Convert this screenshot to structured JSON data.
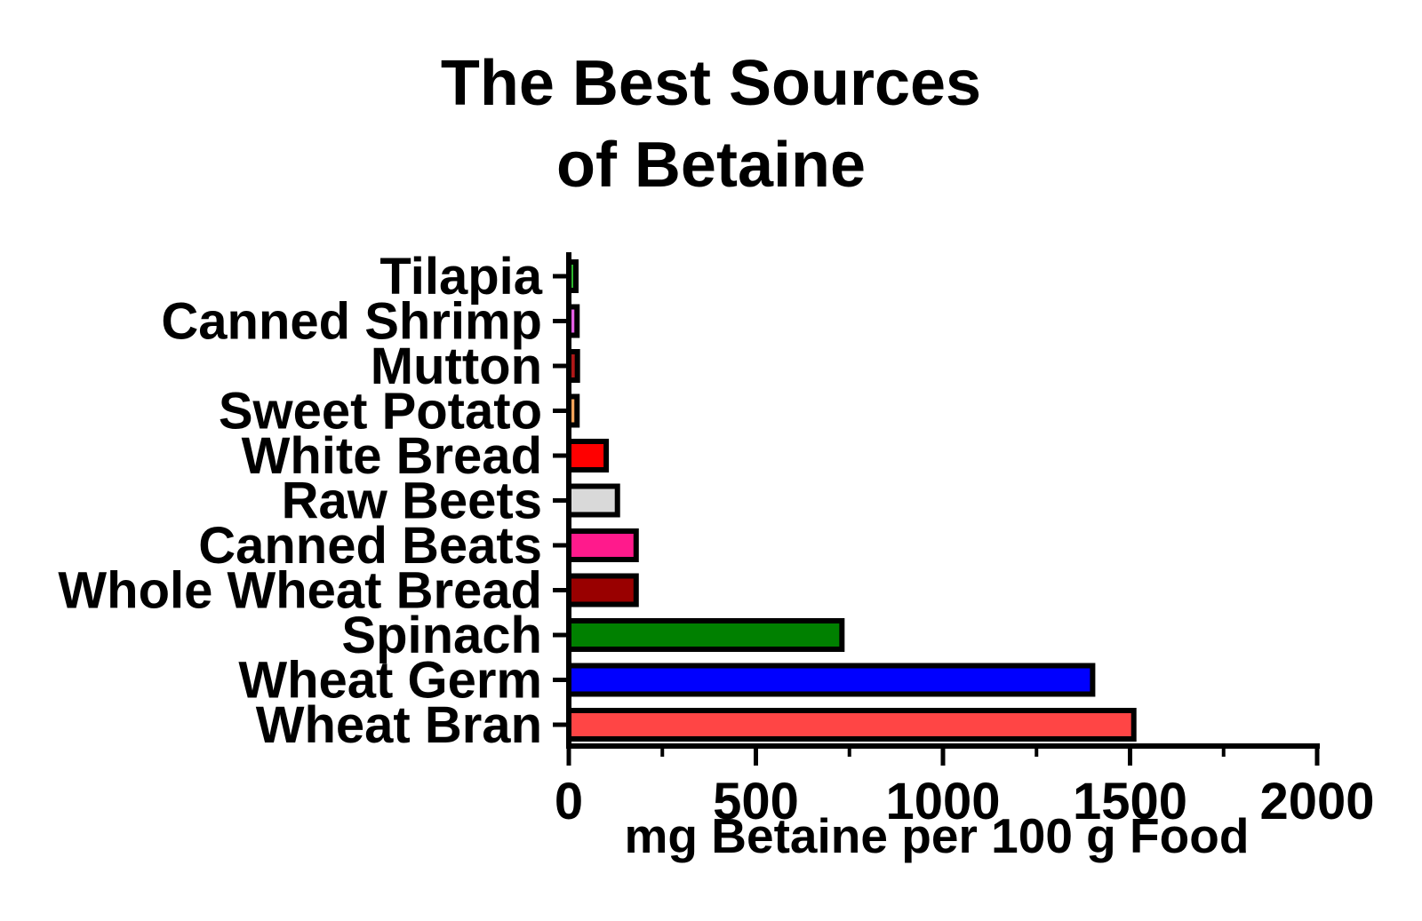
{
  "chart_data": {
    "type": "bar",
    "orientation": "horizontal",
    "title_lines": [
      "The Best Sources",
      "of Betaine"
    ],
    "xlabel": "mg Betaine per 100 g Food",
    "ylabel": "",
    "xlim": [
      0,
      2000
    ],
    "xticks": [
      0,
      500,
      1000,
      1500,
      2000
    ],
    "xtick_labels": [
      "0",
      "500",
      "1000",
      "1500",
      "2000"
    ],
    "grid": false,
    "legend": "none",
    "categories": [
      "Tilapia",
      "Canned Shrimp",
      "Mutton",
      "Sweet Potato",
      "White Bread",
      "Raw Beets",
      "Canned Beats",
      "Whole Wheat Bread",
      "Spinach",
      "Wheat Germ",
      "Wheat Bran"
    ],
    "values": [
      19,
      22,
      23,
      22,
      100,
      130,
      180,
      180,
      730,
      1400,
      1510
    ],
    "colors": [
      "#2db52d",
      "#e45fe4",
      "#b01818",
      "#f5a45a",
      "#ff0000",
      "#d9d9d9",
      "#ff1a8c",
      "#990000",
      "#008000",
      "#0000ff",
      "#ff4545"
    ]
  }
}
